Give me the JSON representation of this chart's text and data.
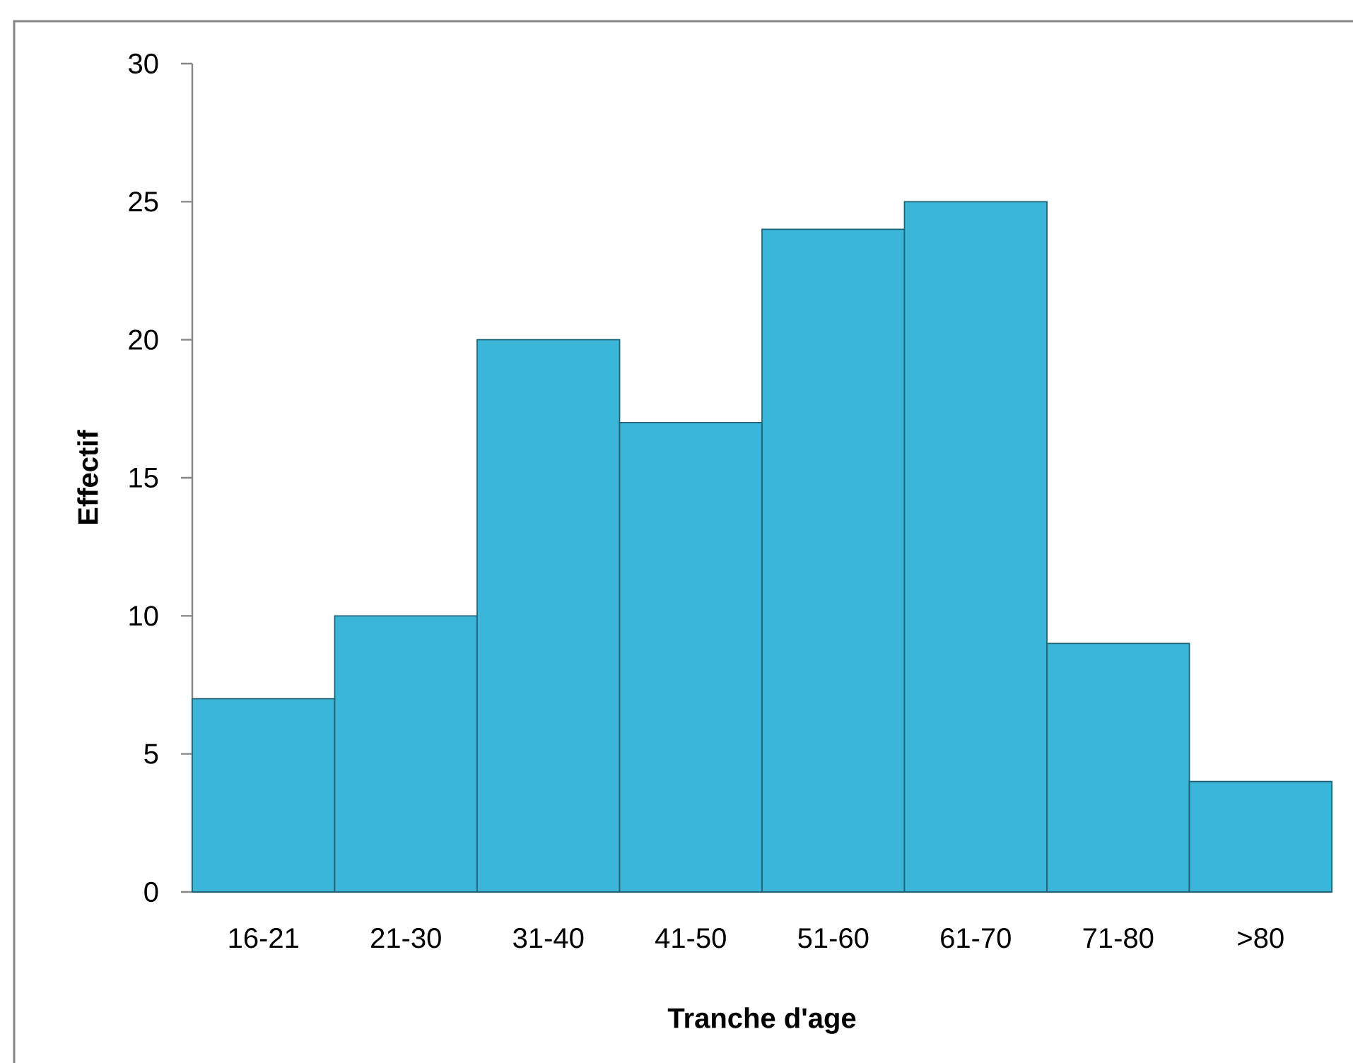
{
  "chart_data": {
    "type": "bar",
    "xlabel": "Tranche d'age",
    "ylabel": "Effectif",
    "categories": [
      "16-21",
      "21-30",
      "31-40",
      "41-50",
      "51-60",
      "61-70",
      "71-80",
      ">80"
    ],
    "values": [
      7,
      10,
      20,
      17,
      24,
      25,
      9,
      4
    ],
    "color": "#3cb6d8",
    "ylim": [
      0,
      30
    ],
    "yticks": [
      0,
      5,
      10,
      15,
      20,
      25,
      30
    ]
  }
}
